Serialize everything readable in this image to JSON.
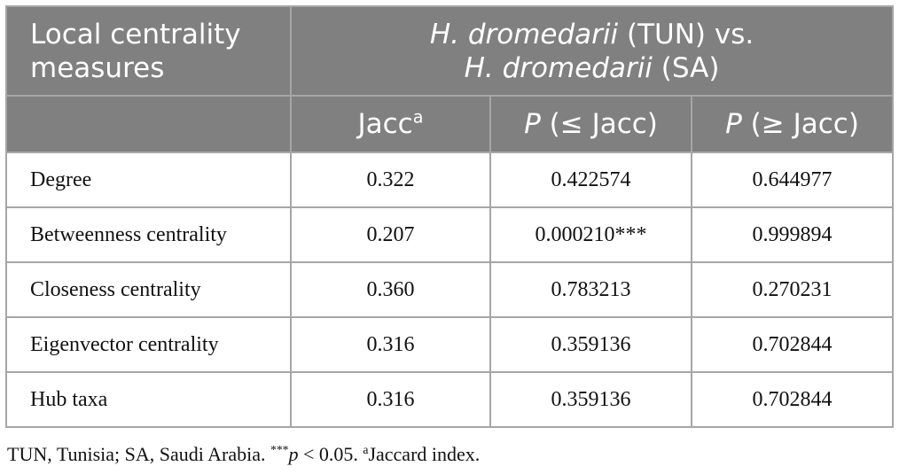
{
  "table": {
    "header": {
      "lead": "Local centrality measures",
      "group": [
        "H. dromedarii",
        " (TUN) vs.",
        "H. dromedarii",
        " (SA)"
      ],
      "columns": [
        {
          "main": "Jacc",
          "sup": "a"
        },
        {
          "italic": "P",
          "rest": " (≤ Jacc)"
        },
        {
          "italic": "P",
          "rest": " (≥ Jacc)"
        }
      ]
    },
    "rows": [
      [
        "Degree",
        "0.322",
        "0.422574",
        "0.644977"
      ],
      [
        "Betweenness centrality",
        "0.207",
        "0.000210***",
        "0.999894"
      ],
      [
        "Closeness centrality",
        "0.360",
        "0.783213",
        "0.270231"
      ],
      [
        "Eigenvector centrality",
        "0.316",
        "0.359136",
        "0.702844"
      ],
      [
        "Hub taxa",
        "0.316",
        "0.359136",
        "0.702844"
      ]
    ]
  },
  "footnote": {
    "text": "TUN, Tunisia; SA, Saudi Arabia. ",
    "stars": "***",
    "p": "p",
    "cond": " < 0.05. ",
    "sup": "a",
    "note": "Jaccard index."
  }
}
